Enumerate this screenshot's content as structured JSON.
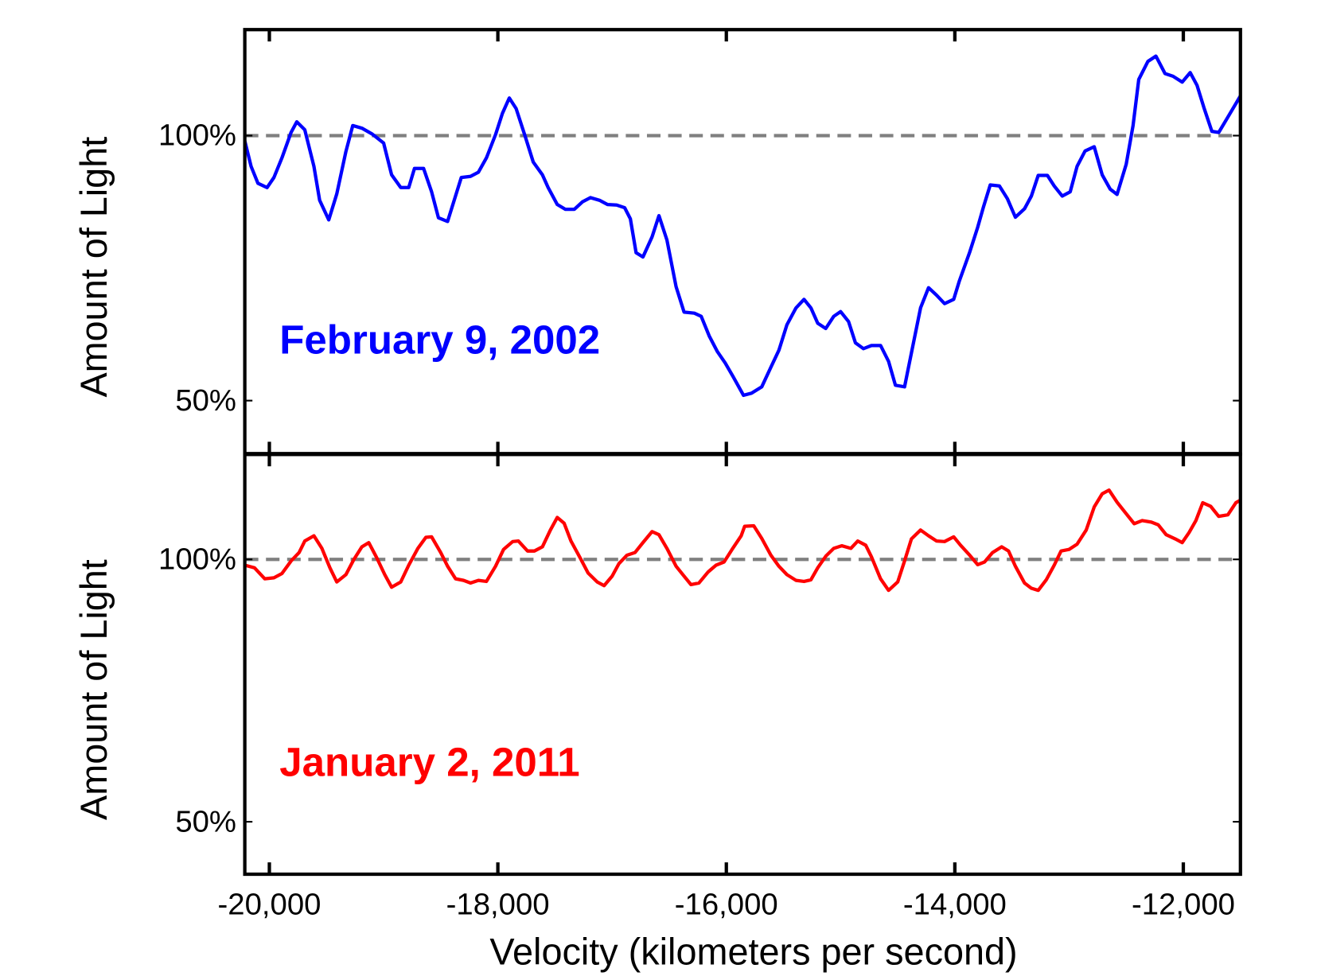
{
  "chart_data": [
    {
      "type": "line",
      "ylabel": "Amount of Light",
      "annotation": "February 9, 2002",
      "xlim": [
        -20215,
        -11500
      ],
      "ylim": [
        40,
        120
      ],
      "yticks": [
        {
          "value": 50,
          "label": "50%"
        },
        {
          "value": 100,
          "label": "100%"
        }
      ],
      "reference_line": 100,
      "x": [
        -20215,
        -20160,
        -20100,
        -20020,
        -19960,
        -19890,
        -19810,
        -19760,
        -19690,
        -19610,
        -19560,
        -19480,
        -19410,
        -19330,
        -19270,
        -19190,
        -19100,
        -19000,
        -18930,
        -18850,
        -18780,
        -18730,
        -18650,
        -18580,
        -18520,
        -18440,
        -18320,
        -18240,
        -18170,
        -18100,
        -18020,
        -17960,
        -17900,
        -17840,
        -17760,
        -17690,
        -17610,
        -17560,
        -17480,
        -17410,
        -17330,
        -17260,
        -17190,
        -17110,
        -17040,
        -16960,
        -16890,
        -16840,
        -16790,
        -16730,
        -16650,
        -16590,
        -16520,
        -16440,
        -16370,
        -16280,
        -16220,
        -16150,
        -16080,
        -16010,
        -15940,
        -15850,
        -15780,
        -15690,
        -15610,
        -15540,
        -15470,
        -15390,
        -15320,
        -15260,
        -15200,
        -15130,
        -15060,
        -15000,
        -14930,
        -14870,
        -14800,
        -14730,
        -14650,
        -14580,
        -14520,
        -14440,
        -14380,
        -14300,
        -14230,
        -14160,
        -14090,
        -14010,
        -13960,
        -13870,
        -13800,
        -13750,
        -13690,
        -13610,
        -13540,
        -13470,
        -13390,
        -13330,
        -13270,
        -13190,
        -13130,
        -13060,
        -12990,
        -12930,
        -12860,
        -12780,
        -12710,
        -12640,
        -12580,
        -12500,
        -12440,
        -12390,
        -12310,
        -12240,
        -12160,
        -12090,
        -12010,
        -11940,
        -11880,
        -11820,
        -11750,
        -11690,
        -11610,
        -11500
      ],
      "series": [
        {
          "color": "#0000ff",
          "values": [
            99,
            94.2,
            91,
            90.2,
            92.1,
            95.8,
            100.6,
            102.6,
            101.1,
            94.2,
            87.8,
            84.1,
            89,
            97,
            101.9,
            101.4,
            100.3,
            98.6,
            92.6,
            90.2,
            90.2,
            93.8,
            93.8,
            89.4,
            84.5,
            83.8,
            92.1,
            92.3,
            93.1,
            95.8,
            100.2,
            104.2,
            107.1,
            105.1,
            99.8,
            95,
            92.6,
            90.2,
            87,
            86.1,
            86.1,
            87.5,
            88.3,
            87.8,
            87,
            86.9,
            86.4,
            84.3,
            77.9,
            77.1,
            80.9,
            84.9,
            80.3,
            71.5,
            66.7,
            66.5,
            65.9,
            62.2,
            59.3,
            57.1,
            54.5,
            51,
            51.4,
            52.6,
            56.3,
            59.5,
            64.3,
            67.5,
            69.1,
            67.5,
            64.6,
            63.6,
            65.9,
            66.8,
            64.9,
            60.9,
            59.8,
            60.4,
            60.4,
            57.4,
            52.9,
            52.6,
            59,
            67.5,
            71.3,
            69.9,
            68.3,
            69.1,
            72.6,
            78,
            82.7,
            86.5,
            90.7,
            90.5,
            88.1,
            84.6,
            86.2,
            88.6,
            92.5,
            92.5,
            90.5,
            88.6,
            89.4,
            94.2,
            97.1,
            97.9,
            92.6,
            89.9,
            88.9,
            94.6,
            101.9,
            110.6,
            114,
            115,
            111.7,
            111.2,
            110.1,
            111.9,
            109.5,
            105.3,
            100.8,
            100.6,
            103.5,
            107.5
          ]
        }
      ]
    },
    {
      "type": "line",
      "ylabel": "Amount of Light",
      "xlabel": "Velocity (kilometers per second)",
      "annotation": "January 2, 2011",
      "xlim": [
        -20215,
        -11500
      ],
      "ylim": [
        40,
        120
      ],
      "xticks": [
        {
          "value": -20000,
          "label": "-20,000"
        },
        {
          "value": -18000,
          "label": "-18,000"
        },
        {
          "value": -16000,
          "label": "-16,000"
        },
        {
          "value": -14000,
          "label": "-14,000"
        },
        {
          "value": -12000,
          "label": "-12,000"
        }
      ],
      "yticks": [
        {
          "value": 50,
          "label": "50%"
        },
        {
          "value": 100,
          "label": "100%"
        }
      ],
      "reference_line": 100,
      "x": [
        -20215,
        -20130,
        -20040,
        -19960,
        -19890,
        -19810,
        -19740,
        -19690,
        -19610,
        -19540,
        -19470,
        -19410,
        -19330,
        -19260,
        -19190,
        -19130,
        -19060,
        -18990,
        -18930,
        -18850,
        -18780,
        -18700,
        -18630,
        -18580,
        -18500,
        -18440,
        -18370,
        -18300,
        -18240,
        -18170,
        -18100,
        -18020,
        -17950,
        -17870,
        -17820,
        -17740,
        -17680,
        -17610,
        -17540,
        -17480,
        -17420,
        -17360,
        -17280,
        -17210,
        -17130,
        -17070,
        -17000,
        -16940,
        -16870,
        -16800,
        -16730,
        -16650,
        -16590,
        -16520,
        -16440,
        -16370,
        -16310,
        -16240,
        -16160,
        -16090,
        -16020,
        -15950,
        -15870,
        -15840,
        -15760,
        -15690,
        -15610,
        -15540,
        -15470,
        -15390,
        -15320,
        -15260,
        -15200,
        -15130,
        -15060,
        -14990,
        -14910,
        -14850,
        -14780,
        -14730,
        -14650,
        -14580,
        -14500,
        -14440,
        -14380,
        -14300,
        -14230,
        -14160,
        -14090,
        -14010,
        -13950,
        -13870,
        -13800,
        -13740,
        -13670,
        -13590,
        -13530,
        -13470,
        -13390,
        -13330,
        -13270,
        -13200,
        -13130,
        -13070,
        -13000,
        -12930,
        -12850,
        -12780,
        -12710,
        -12650,
        -12580,
        -12500,
        -12430,
        -12360,
        -12280,
        -12220,
        -12150,
        -12070,
        -12010,
        -11950,
        -11890,
        -11830,
        -11760,
        -11690,
        -11610,
        -11540,
        -11500
      ],
      "series": [
        {
          "color": "#ff0000",
          "values": [
            98.9,
            98.4,
            96.3,
            96.5,
            97.3,
            99.7,
            101.3,
            103.5,
            104.5,
            102.1,
            98.4,
            95.7,
            97.1,
            100,
            102.4,
            103.2,
            100.3,
            97.1,
            94.7,
            95.7,
            98.9,
            102.1,
            104.2,
            104.3,
            101.3,
            98.7,
            96.3,
            96,
            95.5,
            96,
            95.8,
            98.7,
            101.9,
            103.4,
            103.5,
            101.6,
            101.6,
            102.4,
            105.6,
            108,
            106.9,
            103.5,
            100.3,
            97.4,
            95.7,
            95,
            96.8,
            99.2,
            100.8,
            101.3,
            103.2,
            105.3,
            104.7,
            102.1,
            98.7,
            96.8,
            95.2,
            95.5,
            97.6,
            98.9,
            99.5,
            101.9,
            104.5,
            106.3,
            106.4,
            104,
            100.8,
            98.7,
            97.1,
            96,
            95.8,
            96.1,
            98.4,
            100.6,
            102.1,
            102.6,
            102.1,
            103.5,
            102.7,
            100.5,
            96.3,
            94.1,
            95.7,
            99.7,
            103.9,
            105.6,
            104.5,
            103.5,
            103.4,
            104.3,
            102.7,
            100.8,
            99,
            99.5,
            101.3,
            102.4,
            101.6,
            98.7,
            95.5,
            94.5,
            94.1,
            96.1,
            98.9,
            101.6,
            101.9,
            102.9,
            105.6,
            110,
            112.5,
            113.2,
            110.9,
            108.7,
            106.8,
            107.4,
            107.1,
            106.6,
            104.7,
            103.9,
            103.2,
            105.1,
            107.4,
            110.8,
            110.1,
            108.2,
            108.5,
            110.8,
            111.3
          ]
        }
      ]
    }
  ]
}
